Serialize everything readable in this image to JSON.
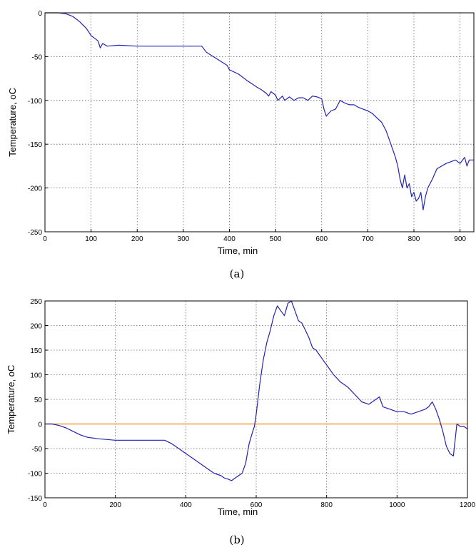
{
  "chart_data": [
    {
      "id": "a",
      "type": "line",
      "caption": "(a)",
      "xlabel": "Time, min",
      "ylabel": "Temperature, oC",
      "xlim": [
        0,
        930
      ],
      "ylim": [
        -250,
        0
      ],
      "xticks": [
        0,
        100,
        200,
        300,
        400,
        500,
        600,
        700,
        800,
        900
      ],
      "yticks": [
        0,
        -50,
        -100,
        -150,
        -200,
        -250
      ],
      "grid": true,
      "colors": {
        "series": "#2323b4"
      },
      "series": [
        {
          "color": "#2323b4",
          "x": [
            0,
            30,
            45,
            60,
            75,
            90,
            100,
            110,
            115,
            120,
            125,
            135,
            160,
            200,
            250,
            300,
            320,
            340,
            350,
            365,
            380,
            395,
            400,
            420,
            440,
            460,
            470,
            480,
            485,
            490,
            500,
            505,
            515,
            520,
            530,
            540,
            550,
            560,
            570,
            580,
            590,
            600,
            605,
            610,
            620,
            630,
            640,
            650,
            660,
            670,
            680,
            690,
            700,
            710,
            720,
            730,
            740,
            750,
            760,
            765,
            770,
            775,
            780,
            785,
            790,
            795,
            800,
            805,
            810,
            815,
            820,
            825,
            830,
            840,
            850,
            860,
            870,
            880,
            890,
            900,
            910,
            915,
            920,
            930
          ],
          "y": [
            0,
            0,
            -1,
            -4,
            -10,
            -18,
            -26,
            -30,
            -32,
            -40,
            -35,
            -38,
            -37,
            -38,
            -38,
            -38,
            -38,
            -38,
            -45,
            -50,
            -55,
            -60,
            -65,
            -70,
            -78,
            -85,
            -88,
            -92,
            -95,
            -90,
            -94,
            -100,
            -95,
            -100,
            -96,
            -100,
            -97,
            -97,
            -100,
            -95,
            -96,
            -98,
            -110,
            -118,
            -112,
            -110,
            -100,
            -103,
            -105,
            -105,
            -108,
            -110,
            -112,
            -115,
            -120,
            -125,
            -135,
            -150,
            -165,
            -175,
            -190,
            -200,
            -185,
            -200,
            -195,
            -210,
            -205,
            -215,
            -212,
            -205,
            -225,
            -210,
            -200,
            -190,
            -178,
            -175,
            -172,
            -170,
            -168,
            -172,
            -165,
            -175,
            -168,
            -168
          ]
        }
      ]
    },
    {
      "id": "b",
      "type": "line",
      "caption": "(b)",
      "xlabel": "Time, min",
      "ylabel": "Temperature, oC",
      "xlim": [
        0,
        1200
      ],
      "ylim": [
        -150,
        250
      ],
      "xticks": [
        0,
        200,
        400,
        600,
        800,
        1000,
        1200
      ],
      "yticks": [
        250,
        200,
        150,
        100,
        50,
        0,
        -50,
        -100,
        -150
      ],
      "grid": true,
      "colors": {
        "series": "#2323b4",
        "reference": "#f59a40"
      },
      "series": [
        {
          "color": "#2323b4",
          "x": [
            0,
            20,
            40,
            60,
            80,
            100,
            120,
            150,
            200,
            250,
            300,
            340,
            360,
            380,
            400,
            420,
            440,
            460,
            480,
            500,
            510,
            520,
            530,
            540,
            550,
            560,
            570,
            580,
            590,
            595,
            600,
            610,
            620,
            630,
            640,
            650,
            660,
            670,
            680,
            690,
            700,
            710,
            720,
            730,
            740,
            750,
            760,
            770,
            780,
            790,
            800,
            820,
            840,
            860,
            880,
            900,
            920,
            940,
            950,
            960,
            980,
            1000,
            1020,
            1040,
            1060,
            1080,
            1090,
            1100,
            1110,
            1120,
            1130,
            1140,
            1150,
            1160,
            1170,
            1180,
            1190,
            1200
          ],
          "y": [
            0,
            0,
            -3,
            -8,
            -15,
            -22,
            -27,
            -30,
            -33,
            -33,
            -33,
            -33,
            -40,
            -50,
            -60,
            -70,
            -80,
            -90,
            -100,
            -105,
            -110,
            -112,
            -115,
            -110,
            -105,
            -100,
            -80,
            -40,
            -15,
            -5,
            20,
            80,
            130,
            165,
            190,
            220,
            240,
            230,
            220,
            245,
            250,
            230,
            210,
            205,
            190,
            175,
            155,
            150,
            140,
            130,
            120,
            100,
            85,
            75,
            60,
            45,
            40,
            50,
            55,
            35,
            30,
            25,
            25,
            20,
            25,
            30,
            35,
            45,
            30,
            10,
            -15,
            -45,
            -60,
            -65,
            0,
            -5,
            -5,
            -10
          ]
        }
      ],
      "reference_line": {
        "y": 0,
        "color": "#f59a40"
      }
    }
  ]
}
